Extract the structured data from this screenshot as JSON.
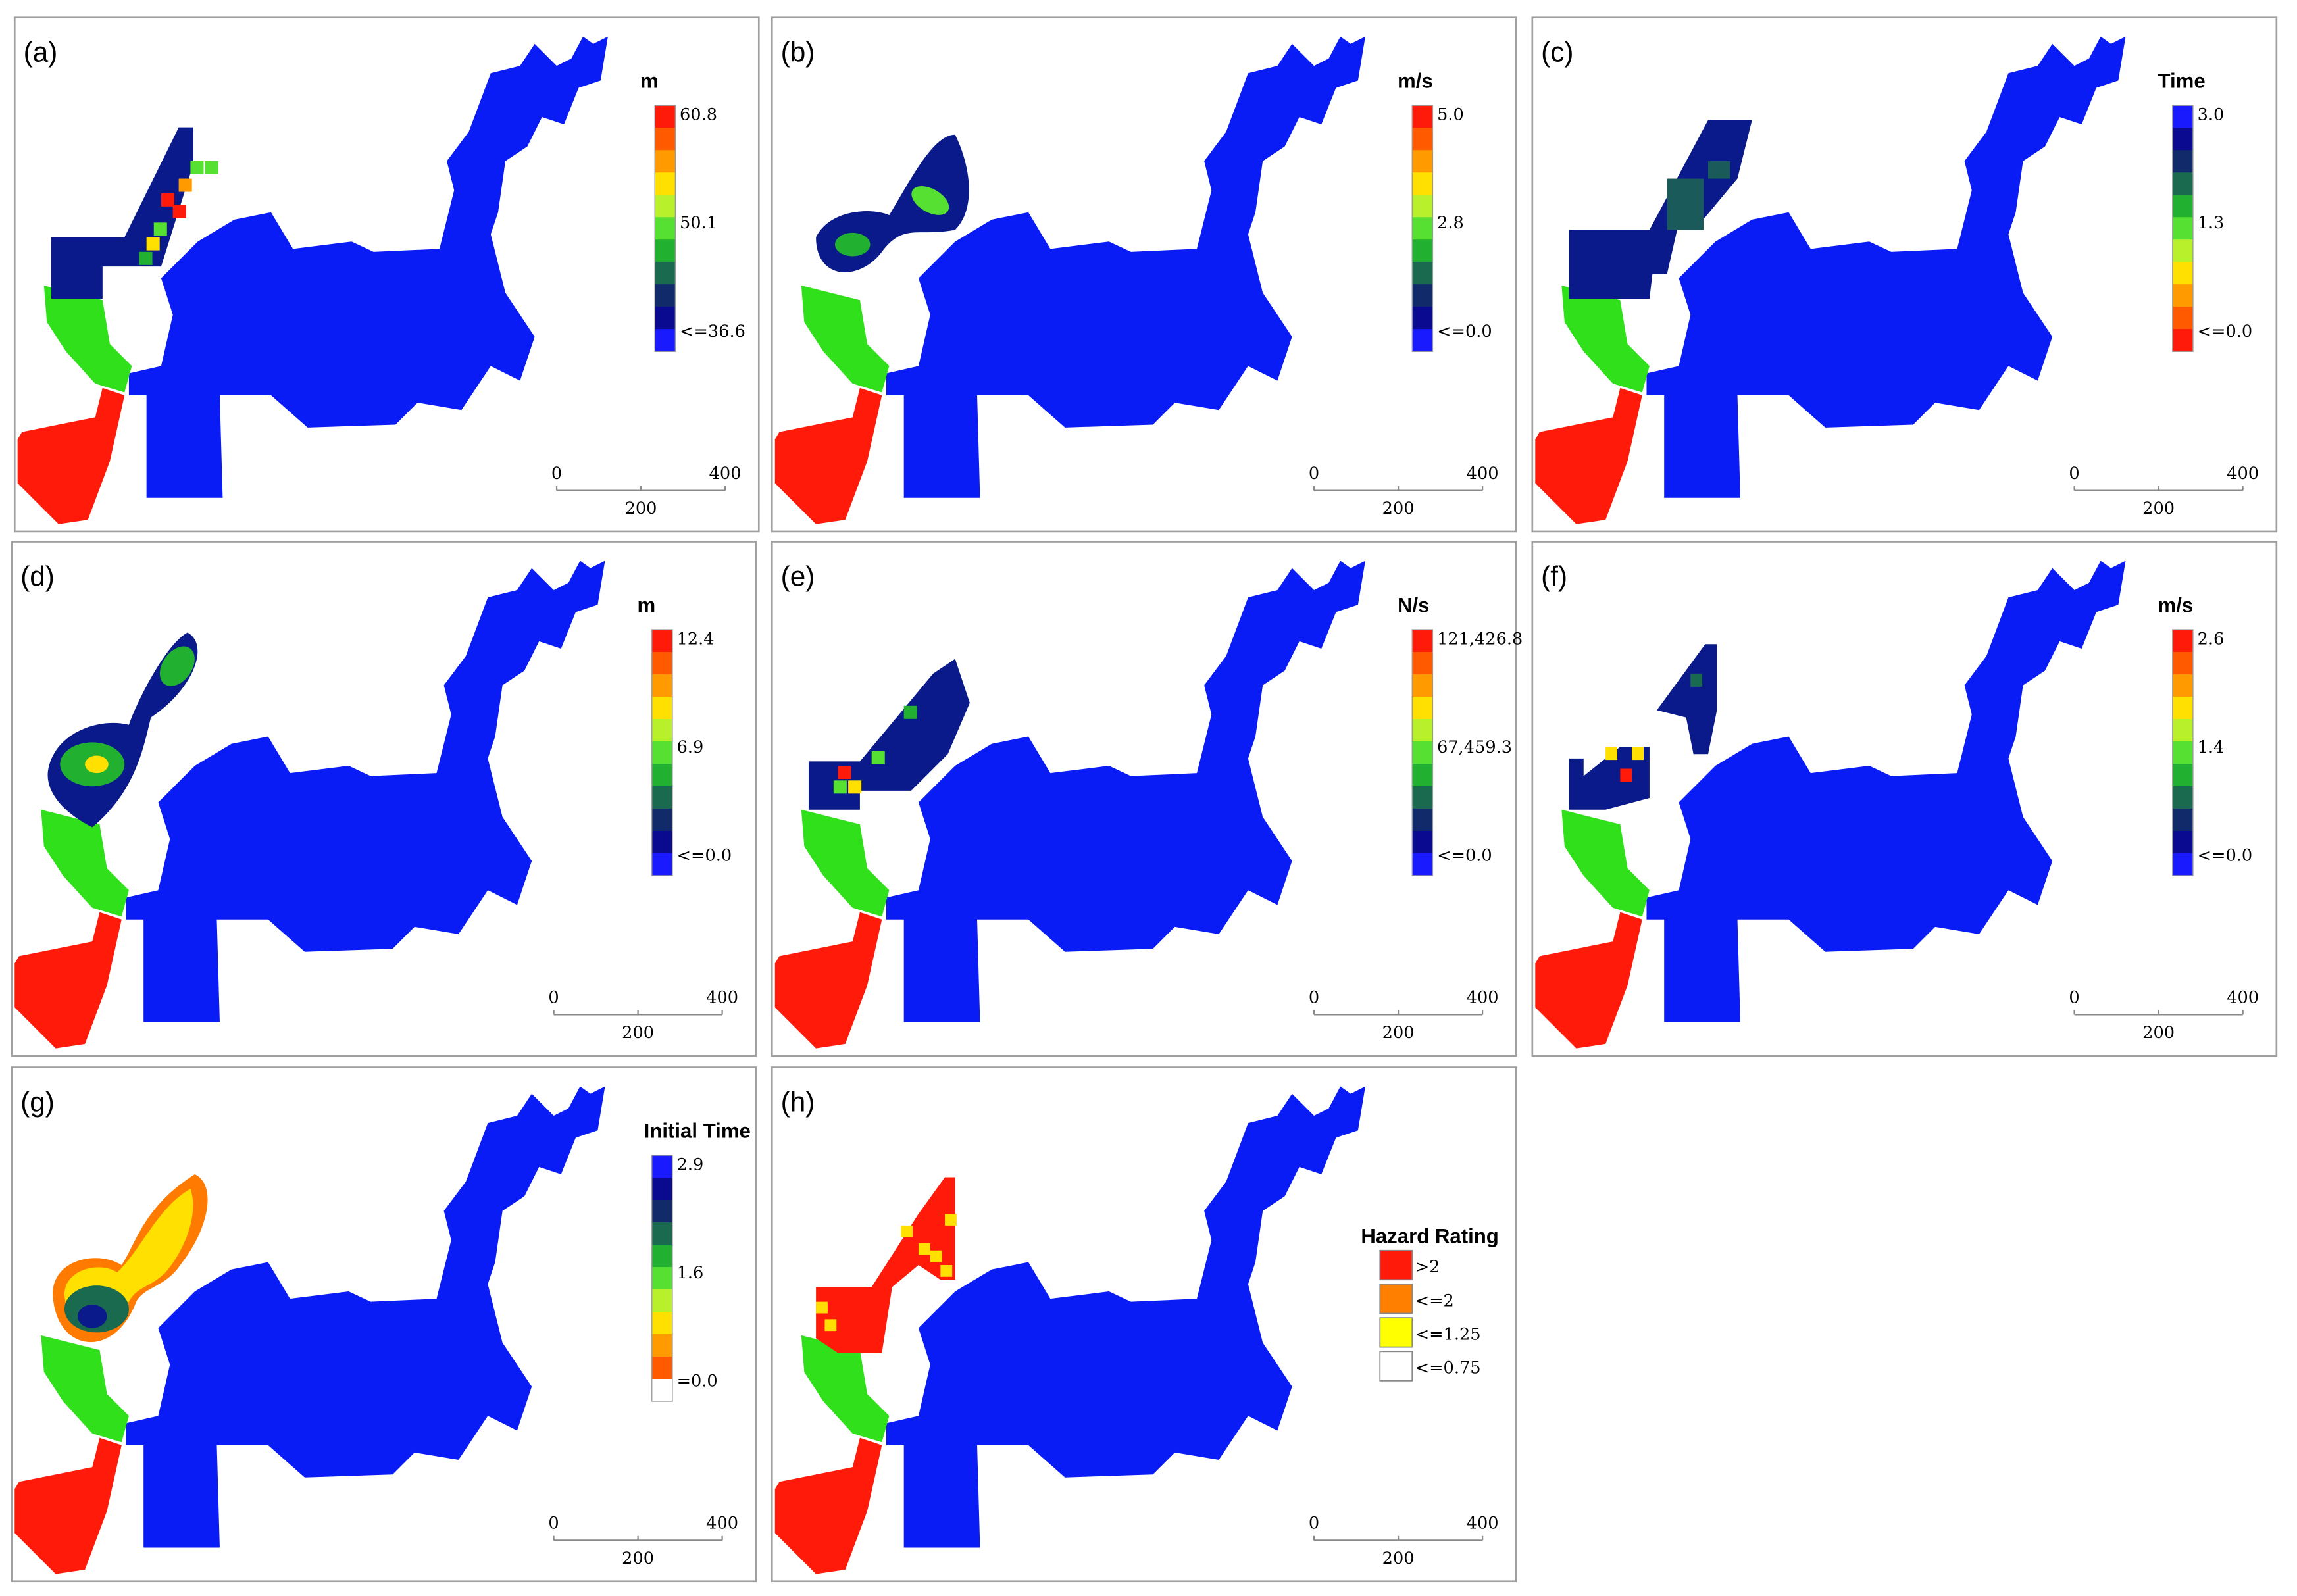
{
  "panels": [
    {
      "label": "(a)",
      "legend_title": "m",
      "legend_labels": [
        "60.8",
        "50.1",
        "<=36.6"
      ]
    },
    {
      "label": "(b)",
      "legend_title": "m/s",
      "legend_labels": [
        "5.0",
        "2.8",
        "<=0.0"
      ]
    },
    {
      "label": "(c)",
      "legend_title": "Time",
      "legend_labels": [
        "3.0",
        "1.3",
        "<=0.0"
      ]
    },
    {
      "label": "(d)",
      "legend_title": "m",
      "legend_labels": [
        "12.4",
        "6.9",
        "<=0.0"
      ]
    },
    {
      "label": "(e)",
      "legend_title": "N/s",
      "legend_labels": [
        "121,426.8",
        "67,459.3",
        "<=0.0"
      ]
    },
    {
      "label": "(f)",
      "legend_title": "m/s",
      "legend_labels": [
        "2.6",
        "1.4",
        "<=0.0"
      ]
    },
    {
      "label": "(g)",
      "legend_title": "Initial Time",
      "legend_labels": [
        "2.9",
        "1.6",
        "=0.0"
      ]
    },
    {
      "label": "(h)",
      "legend_title": "Hazard Rating",
      "legend_labels": [
        ">2",
        "<=2",
        "<=1.25",
        "<=0.75"
      ]
    }
  ],
  "scale_bar": {
    "labels": [
      "0",
      "200",
      "400"
    ]
  }
}
